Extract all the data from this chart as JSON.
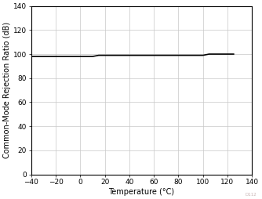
{
  "xlabel": "Temperature (°C)",
  "ylabel": "Common-Mode Rejection Ratio (dB)",
  "xlim": [
    -40,
    140
  ],
  "ylim": [
    0,
    140
  ],
  "xticks": [
    -40,
    -20,
    0,
    20,
    40,
    60,
    80,
    100,
    120,
    140
  ],
  "yticks": [
    0,
    20,
    40,
    60,
    80,
    100,
    120,
    140
  ],
  "line_x": [
    -40,
    10,
    15,
    100,
    105,
    125
  ],
  "line_y": [
    98,
    98,
    99,
    99,
    100,
    100
  ],
  "line_color": "#000000",
  "line_width": 1.2,
  "grid_color": "#c8c8c8",
  "background_color": "#ffffff",
  "watermark": "D112",
  "watermark_color": "#c8b4b4",
  "axis_label_fontsize": 7,
  "tick_fontsize": 6.5
}
